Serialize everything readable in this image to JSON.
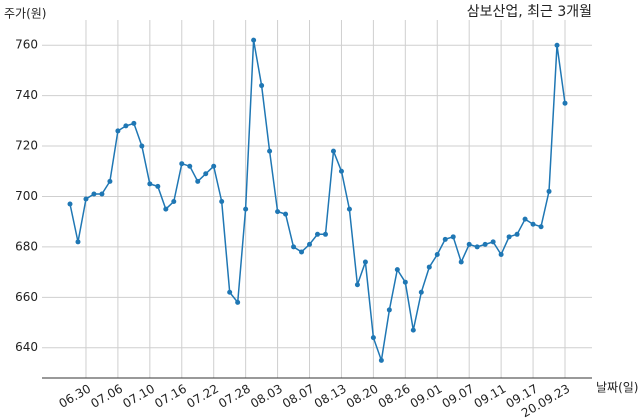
{
  "chart_data": {
    "type": "line",
    "title": "삼보산업, 최근 3개월",
    "y_label": "주가(원)",
    "x_label": "날짜(일)",
    "categories": [
      null,
      null,
      "06.30",
      null,
      null,
      null,
      "07.06",
      null,
      null,
      null,
      "07.10",
      null,
      null,
      null,
      "07.16",
      null,
      null,
      null,
      "07.22",
      null,
      null,
      null,
      "07.28",
      null,
      null,
      null,
      "08.03",
      null,
      null,
      null,
      "08.07",
      null,
      null,
      null,
      "08.13",
      null,
      null,
      null,
      "08.20",
      null,
      null,
      null,
      "08.26",
      null,
      null,
      null,
      "09.01",
      null,
      null,
      null,
      "09.07",
      null,
      null,
      null,
      "09.11",
      null,
      null,
      null,
      "09.17",
      null,
      null,
      null,
      "20.09.23"
    ],
    "series": [
      {
        "name": "삼보산업",
        "color": "#1f77b4",
        "values": [
          697,
          682,
          699,
          701,
          701,
          706,
          726,
          728,
          729,
          720,
          705,
          704,
          695,
          698,
          713,
          712,
          706,
          709,
          712,
          698,
          662,
          658,
          695,
          762,
          744,
          718,
          694,
          693,
          680,
          678,
          681,
          685,
          685,
          718,
          710,
          695,
          665,
          674,
          644,
          635,
          655,
          671,
          666,
          647,
          662,
          672,
          677,
          683,
          684,
          674,
          681,
          680,
          681,
          682,
          677,
          684,
          685,
          691,
          689,
          688,
          702,
          760,
          737
        ]
      }
    ],
    "ylim": [
      628,
      770
    ],
    "yticks": [
      640,
      660,
      680,
      700,
      720,
      740,
      760
    ],
    "grid": true
  }
}
